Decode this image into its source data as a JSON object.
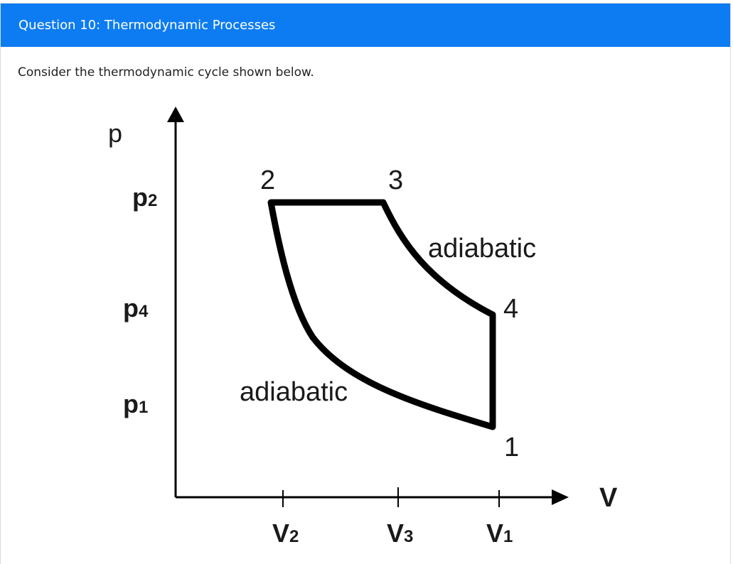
{
  "header": {
    "title": "Question 10: Thermodynamic Processes"
  },
  "body": {
    "prompt": "Consider the thermodynamic cycle shown below."
  },
  "diagram": {
    "axes": {
      "y": "p",
      "x": "V"
    },
    "p_ticks": [
      {
        "base": "p",
        "sub": "2"
      },
      {
        "base": "p",
        "sub": "4"
      },
      {
        "base": "p",
        "sub": "1"
      }
    ],
    "v_ticks": [
      {
        "base": "V",
        "sub": "2"
      },
      {
        "base": "V",
        "sub": "3"
      },
      {
        "base": "V",
        "sub": "1"
      }
    ],
    "points": [
      "1",
      "2",
      "3",
      "4"
    ],
    "process_labels": [
      "adiabatic",
      "adiabatic"
    ],
    "colors": {
      "header": "#0d7cf2",
      "ink": "#000000"
    }
  }
}
